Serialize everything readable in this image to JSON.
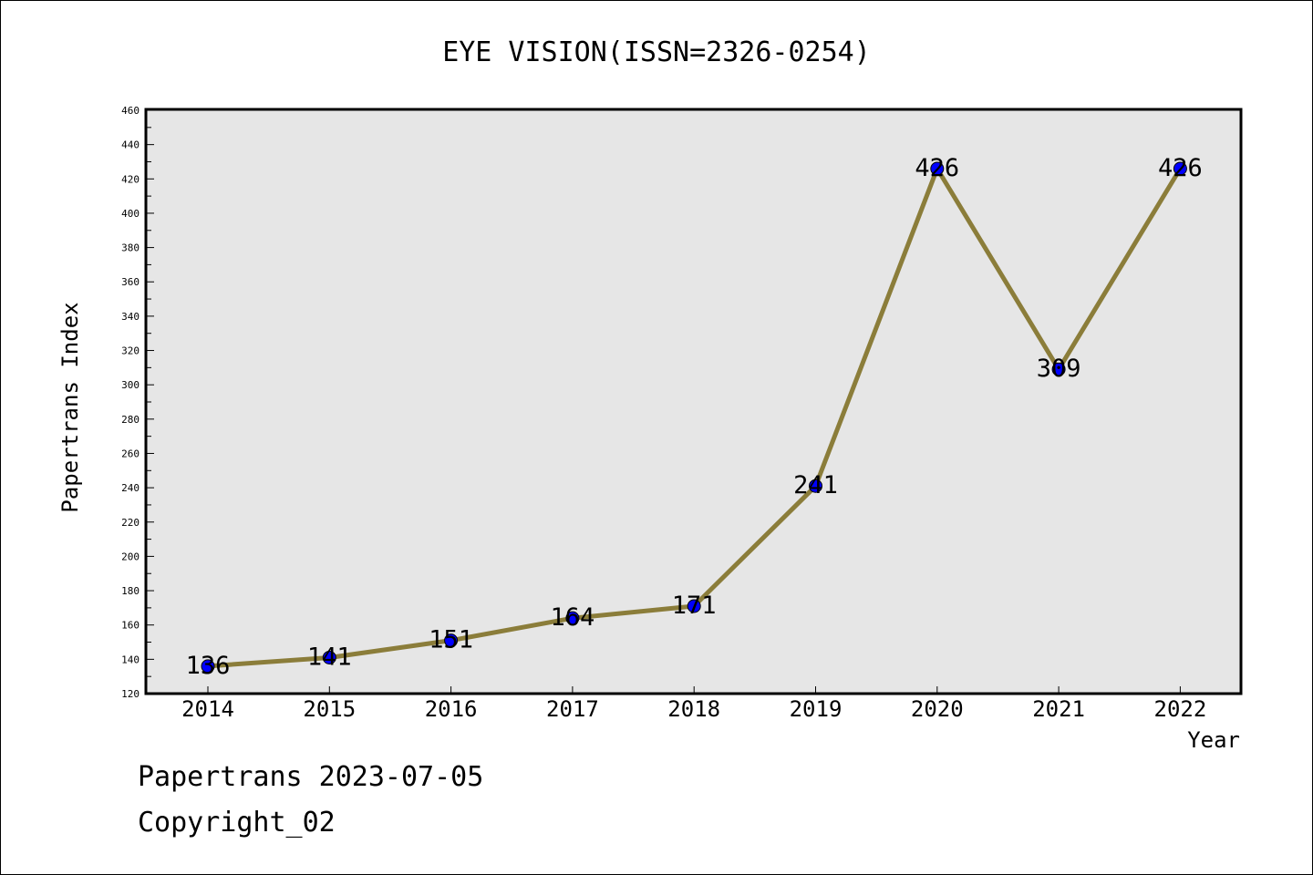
{
  "chart_data": {
    "type": "line",
    "title": "EYE VISION(ISSN=2326-0254)",
    "xlabel": "Year",
    "ylabel": "Papertrans Index",
    "categories": [
      "2014",
      "2015",
      "2016",
      "2017",
      "2018",
      "2019",
      "2020",
      "2021",
      "2022"
    ],
    "series": [
      {
        "values": [
          136,
          141,
          151,
          164,
          171,
          241,
          426,
          309,
          426
        ]
      }
    ],
    "data_labels": [
      "136",
      "141",
      "151",
      "164",
      "171",
      "241",
      "426",
      "309",
      "426"
    ],
    "ylim": [
      120,
      460
    ],
    "yticks": [
      120,
      140,
      160,
      180,
      200,
      220,
      240,
      260,
      280,
      300,
      320,
      340,
      360,
      380,
      400,
      420,
      440,
      460
    ],
    "ytick_labels": [
      "120",
      "140",
      "160",
      "180",
      "200",
      "220",
      "240",
      "260",
      "280",
      "300",
      "320",
      "340",
      "360",
      "380",
      "400",
      "420",
      "440",
      "460"
    ],
    "grid": false,
    "legend": "none",
    "colors": {
      "line": "#8b7d3a",
      "marker_fill": "#0000ff",
      "plot_background": "#e6e6e6",
      "frame": "#000000"
    }
  },
  "footer": {
    "line1": "Papertrans 2023-07-05",
    "line2": "Copyright_02"
  }
}
